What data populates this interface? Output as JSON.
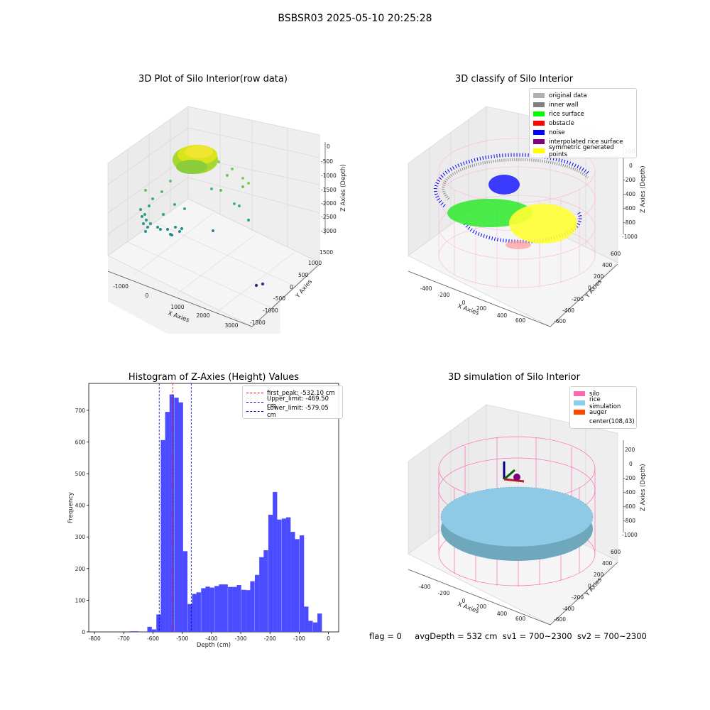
{
  "suptitle": "BSBSR03 2025-05-10 20:25:28",
  "panels": {
    "raw": {
      "title": "3D Plot of Silo Interior(row data)",
      "xlabel": "X Axies",
      "ylabel": "Y Axies",
      "zlabel": "Z Axies (Depth)",
      "xticks": [
        "-1000",
        "0",
        "1000",
        "2000",
        "3000"
      ],
      "yticks": [
        "-1500",
        "-1000",
        "-500",
        "0",
        "500",
        "1000",
        "1500"
      ],
      "zticks": [
        "0",
        "-500",
        "-1000",
        "-1500",
        "-2000",
        "-2500",
        "-3000"
      ]
    },
    "classify": {
      "title": "3D classify of Silo Interior",
      "xlabel": "X Axies",
      "ylabel": "Y Axies",
      "zlabel": "Z Axies (Depth)",
      "xticks": [
        "-400",
        "-200",
        "0",
        "200",
        "400",
        "600"
      ],
      "yticks": [
        "-600",
        "-400",
        "-200",
        "0",
        "200",
        "400",
        "600"
      ],
      "zticks": [
        "200",
        "0",
        "-200",
        "-400",
        "-600",
        "-800",
        "-1000"
      ],
      "legend": [
        {
          "label": "original data",
          "color": "#b0b0b0"
        },
        {
          "label": "inner wall",
          "color": "#808080"
        },
        {
          "label": "rice surface",
          "color": "#00ff00"
        },
        {
          "label": "obstacle",
          "color": "#ff0000"
        },
        {
          "label": "noise",
          "color": "#0000ff"
        },
        {
          "label": "interpolated rice surface",
          "color": "#800080"
        },
        {
          "label": "symmetric generated points",
          "color": "#ffff00"
        }
      ]
    },
    "simulation": {
      "title": "3D simulation of Silo Interior",
      "xlabel": "X Axies",
      "ylabel": "Y Axies",
      "zlabel": "Z Axies (Depth)",
      "xticks": [
        "-400",
        "-200",
        "0",
        "200",
        "400",
        "600"
      ],
      "yticks": [
        "-600",
        "-400",
        "-200",
        "0",
        "200",
        "400",
        "600"
      ],
      "zticks": [
        "200",
        "0",
        "-200",
        "-400",
        "-600",
        "-800",
        "-1000"
      ],
      "legend": [
        {
          "label": "silo",
          "color": "#ff69b4"
        },
        {
          "label": "rice simulation",
          "color": "#87ceeb"
        },
        {
          "label": "auger",
          "color": "#ff4500"
        },
        {
          "label": "center(108,43)",
          "color": ""
        }
      ]
    }
  },
  "chart_data": {
    "type": "bar",
    "title": "Histogram of Z-Axies (Height) Values",
    "xlabel": "Depth (cm)",
    "ylabel": "Frequency",
    "xlim": [
      -820,
      35
    ],
    "ylim": [
      0,
      785
    ],
    "xticks": [
      -800,
      -700,
      -600,
      -500,
      -400,
      -300,
      -200,
      -100,
      0
    ],
    "yticks": [
      0,
      100,
      200,
      300,
      400,
      500,
      600,
      700
    ],
    "bin_width": 15.3,
    "bins": [
      {
        "x": -673,
        "y": 2
      },
      {
        "x": -658,
        "y": 2
      },
      {
        "x": -612,
        "y": 16
      },
      {
        "x": -597,
        "y": 8
      },
      {
        "x": -581,
        "y": 55
      },
      {
        "x": -566,
        "y": 606
      },
      {
        "x": -551,
        "y": 695
      },
      {
        "x": -536,
        "y": 750
      },
      {
        "x": -520,
        "y": 740
      },
      {
        "x": -505,
        "y": 725
      },
      {
        "x": -490,
        "y": 255
      },
      {
        "x": -474,
        "y": 88
      },
      {
        "x": -459,
        "y": 120
      },
      {
        "x": -444,
        "y": 125
      },
      {
        "x": -428,
        "y": 138
      },
      {
        "x": -413,
        "y": 143
      },
      {
        "x": -398,
        "y": 140
      },
      {
        "x": -382,
        "y": 145
      },
      {
        "x": -367,
        "y": 150
      },
      {
        "x": -352,
        "y": 150
      },
      {
        "x": -336,
        "y": 142
      },
      {
        "x": -321,
        "y": 142
      },
      {
        "x": -306,
        "y": 148
      },
      {
        "x": -290,
        "y": 133
      },
      {
        "x": -275,
        "y": 132
      },
      {
        "x": -260,
        "y": 160
      },
      {
        "x": -244,
        "y": 180
      },
      {
        "x": -229,
        "y": 236
      },
      {
        "x": -214,
        "y": 258
      },
      {
        "x": -198,
        "y": 370
      },
      {
        "x": -183,
        "y": 442
      },
      {
        "x": -168,
        "y": 355
      },
      {
        "x": -152,
        "y": 358
      },
      {
        "x": -137,
        "y": 362
      },
      {
        "x": -122,
        "y": 316
      },
      {
        "x": -107,
        "y": 293
      },
      {
        "x": -91,
        "y": 305
      },
      {
        "x": -76,
        "y": 80
      },
      {
        "x": -61,
        "y": 35
      },
      {
        "x": -45,
        "y": 30
      },
      {
        "x": -30,
        "y": 58
      }
    ],
    "bar_color": "#4b4bff",
    "vlines": [
      {
        "x": -532.1,
        "color": "#ff0000",
        "label": "first_peak: -532.10 cm"
      },
      {
        "x": -469.5,
        "color": "#0000cc",
        "label": "Upper_limit: -469.50 cm"
      },
      {
        "x": -579.05,
        "color": "#0000cc",
        "label": "Lower_limit: -579.05 cm"
      }
    ],
    "legend_position": "top-right"
  },
  "status": {
    "flag": "flag = 0",
    "avg": "avgDepth = 532 cm",
    "sv1": "sv1 = 700~2300",
    "sv2": "sv2 = 700~2300"
  }
}
